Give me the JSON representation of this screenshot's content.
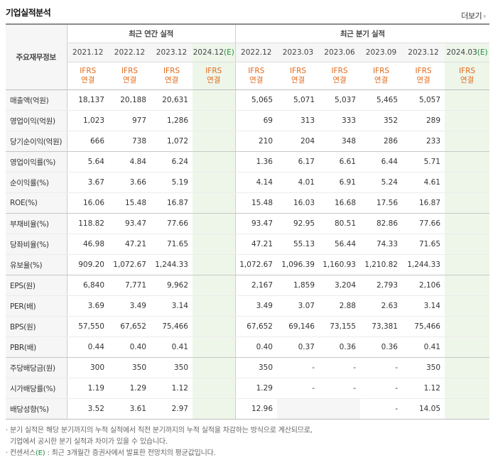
{
  "title": "기업실적분석",
  "more": {
    "label": "더보기",
    "arrow": "›"
  },
  "header": {
    "row_label": "주요재무정보",
    "annual_title": "최근 연간 실적",
    "quarter_title": "최근 분기 실적",
    "annual_periods": [
      {
        "label": "2021.12",
        "est": ""
      },
      {
        "label": "2022.12",
        "est": ""
      },
      {
        "label": "2023.12",
        "est": ""
      },
      {
        "label": "2024.12",
        "est": "(E)"
      }
    ],
    "quarter_periods": [
      {
        "label": "2022.12",
        "est": ""
      },
      {
        "label": "2023.03",
        "est": ""
      },
      {
        "label": "2023.06",
        "est": ""
      },
      {
        "label": "2023.09",
        "est": ""
      },
      {
        "label": "2023.12",
        "est": ""
      },
      {
        "label": "2024.03",
        "est": "(E)"
      }
    ],
    "ifrs_line1": "IFRS",
    "ifrs_line2": "연결"
  },
  "rows": [
    {
      "label": "매출액(억원)",
      "values": [
        "18,137",
        "20,188",
        "20,631",
        "",
        "5,065",
        "5,071",
        "5,037",
        "5,465",
        "5,057",
        ""
      ]
    },
    {
      "label": "영업이익(억원)",
      "values": [
        "1,023",
        "977",
        "1,286",
        "",
        "69",
        "313",
        "333",
        "352",
        "289",
        ""
      ]
    },
    {
      "label": "당기순이익(억원)",
      "values": [
        "666",
        "738",
        "1,072",
        "",
        "210",
        "204",
        "348",
        "286",
        "233",
        ""
      ]
    },
    {
      "label": "영업이익률(%)",
      "values": [
        "5.64",
        "4.84",
        "6.24",
        "",
        "1.36",
        "6.17",
        "6.61",
        "6.44",
        "5.71",
        ""
      ]
    },
    {
      "label": "순이익률(%)",
      "values": [
        "3.67",
        "3.66",
        "5.19",
        "",
        "4.14",
        "4.01",
        "6.91",
        "5.24",
        "4.61",
        ""
      ]
    },
    {
      "label": "ROE(%)",
      "values": [
        "16.06",
        "15.48",
        "16.87",
        "",
        "15.48",
        "16.03",
        "16.68",
        "17.56",
        "16.87",
        ""
      ]
    },
    {
      "label": "부채비율(%)",
      "values": [
        "118.82",
        "93.47",
        "77.66",
        "",
        "93.47",
        "92.95",
        "80.51",
        "82.86",
        "77.66",
        ""
      ]
    },
    {
      "label": "당좌비율(%)",
      "values": [
        "46.98",
        "47.21",
        "71.65",
        "",
        "47.21",
        "55.13",
        "56.44",
        "74.33",
        "71.65",
        ""
      ]
    },
    {
      "label": "유보율(%)",
      "values": [
        "909.20",
        "1,072.67",
        "1,244.33",
        "",
        "1,072.67",
        "1,096.39",
        "1,160.93",
        "1,210.82",
        "1,244.33",
        ""
      ]
    },
    {
      "label": "EPS(원)",
      "values": [
        "6,840",
        "7,771",
        "9,962",
        "",
        "2,167",
        "1,859",
        "3,204",
        "2,793",
        "2,106",
        ""
      ]
    },
    {
      "label": "PER(배)",
      "values": [
        "3.69",
        "3.49",
        "3.14",
        "",
        "3.49",
        "3.07",
        "2.88",
        "2.63",
        "3.14",
        ""
      ]
    },
    {
      "label": "BPS(원)",
      "values": [
        "57,550",
        "67,652",
        "75,466",
        "",
        "67,652",
        "69,146",
        "73,155",
        "73,381",
        "75,466",
        ""
      ]
    },
    {
      "label": "PBR(배)",
      "values": [
        "0.44",
        "0.40",
        "0.41",
        "",
        "0.40",
        "0.37",
        "0.36",
        "0.36",
        "0.41",
        ""
      ]
    },
    {
      "label": "주당배당금(원)",
      "values": [
        "300",
        "350",
        "350",
        "",
        "350",
        "-",
        "-",
        "-",
        "350",
        ""
      ]
    },
    {
      "label": "시가배당률(%)",
      "values": [
        "1.19",
        "1.29",
        "1.12",
        "",
        "1.29",
        "-",
        "-",
        "-",
        "1.12",
        ""
      ]
    },
    {
      "label": "배당성향(%)",
      "values": [
        "3.52",
        "3.61",
        "2.97",
        "",
        "12.96",
        "",
        "",
        "-",
        "14.05",
        ""
      ]
    }
  ],
  "notes": {
    "line1": "· 분기 실적은 해당 분기까지의 누적 실적에서 직전 분기까지의 누적 실적을 차감하는 방식으로 계산되므로,",
    "line2": "기업에서 공시한 분기 실적과 차이가 있을 수 있습니다.",
    "line3_prefix": "· 컨센서스",
    "line3_e": "(E)",
    "line3_suffix": " : 최근 3개월간 증권사에서 발표한 전망치의 평균값입니다."
  }
}
